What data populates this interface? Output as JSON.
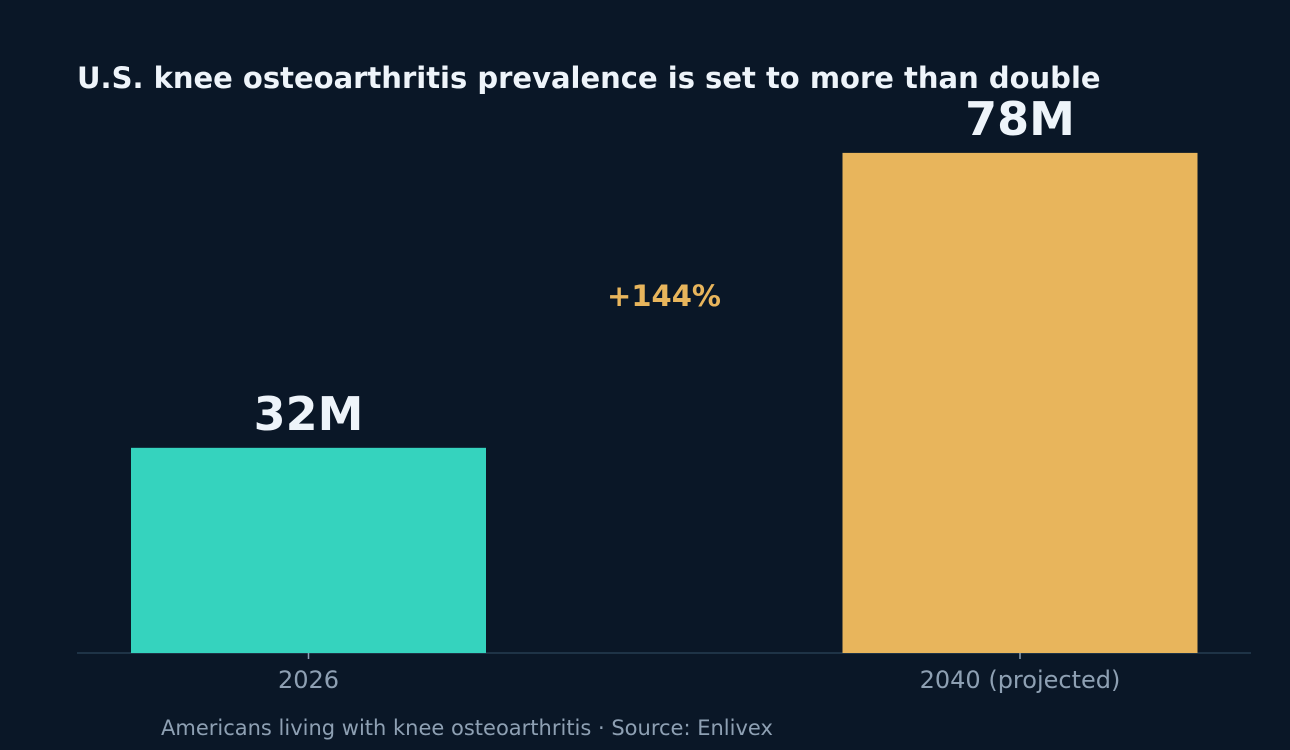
{
  "chart_data": {
    "type": "bar",
    "title": "U.S. knee osteoarthritis prevalence is set to more than double",
    "categories": [
      "2026",
      "2040 (projected)"
    ],
    "values": [
      32,
      78
    ],
    "value_labels": [
      "32M",
      "78M"
    ],
    "unit": "M",
    "ylim": [
      0,
      85
    ],
    "bar_colors": [
      "#35d3be",
      "#e8b55c"
    ],
    "annotation": {
      "text": "+144%",
      "color": "#e8b55c"
    },
    "footnote": "Americans living with knee osteoarthritis  ·  Source: Enlivex",
    "xlabel": "",
    "ylabel": "",
    "grid": false,
    "legend": "none"
  },
  "colors": {
    "background": "#0a1727",
    "title": "#eef4fa",
    "muted_text": "#8ea0b3",
    "axis_line": "#1e3346"
  }
}
